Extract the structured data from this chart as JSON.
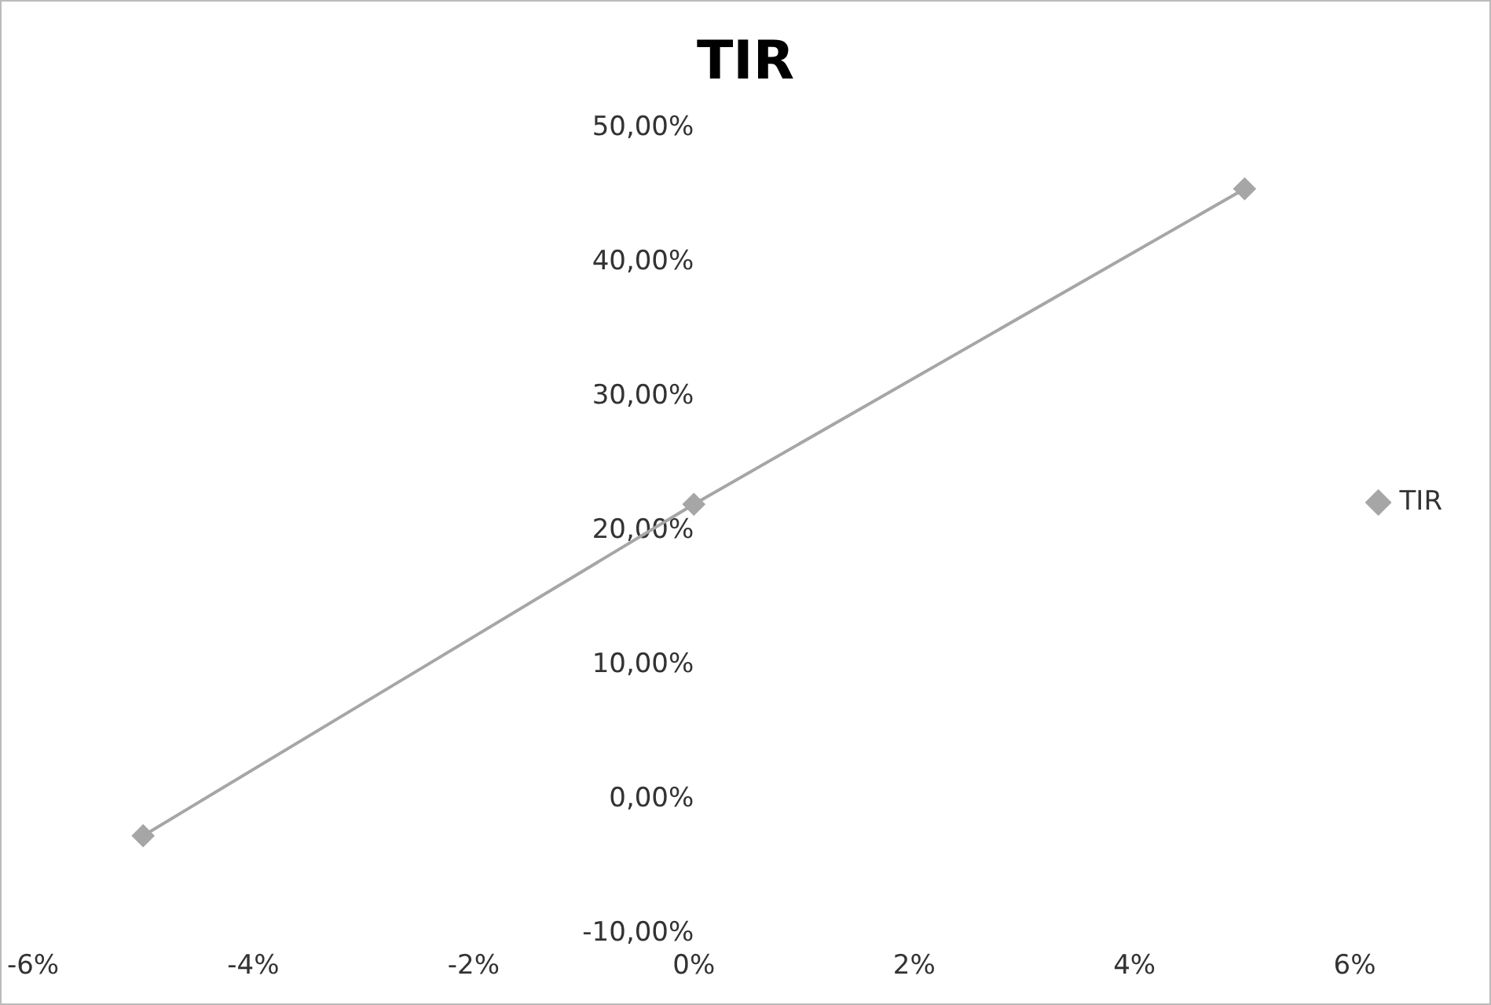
{
  "chart_data": {
    "type": "line",
    "title": "TIR",
    "x": [
      -5,
      0,
      5
    ],
    "series": [
      {
        "name": "TIR",
        "color": "#a6a6a6",
        "values": [
          -2.7,
          22,
          45.5
        ]
      }
    ],
    "xlim": [
      -6,
      6
    ],
    "ylim": [
      -10,
      50
    ],
    "xticks": [
      {
        "value": -6,
        "label": "-6%"
      },
      {
        "value": -4,
        "label": "-4%"
      },
      {
        "value": -2,
        "label": "-2%"
      },
      {
        "value": 0,
        "label": "0%"
      },
      {
        "value": 2,
        "label": "2%"
      },
      {
        "value": 4,
        "label": "4%"
      },
      {
        "value": 6,
        "label": "6%"
      }
    ],
    "yticks": [
      {
        "value": -10,
        "label": "-10,00%"
      },
      {
        "value": 0,
        "label": "0,00%"
      },
      {
        "value": 10,
        "label": "10,00%"
      },
      {
        "value": 20,
        "label": "20,00%"
      },
      {
        "value": 30,
        "label": "30,00%"
      },
      {
        "value": 40,
        "label": "40,00%"
      },
      {
        "value": 50,
        "label": "50,00%"
      }
    ],
    "grid": false,
    "legend": "right",
    "marker": "diamond",
    "line_style": "solid"
  }
}
